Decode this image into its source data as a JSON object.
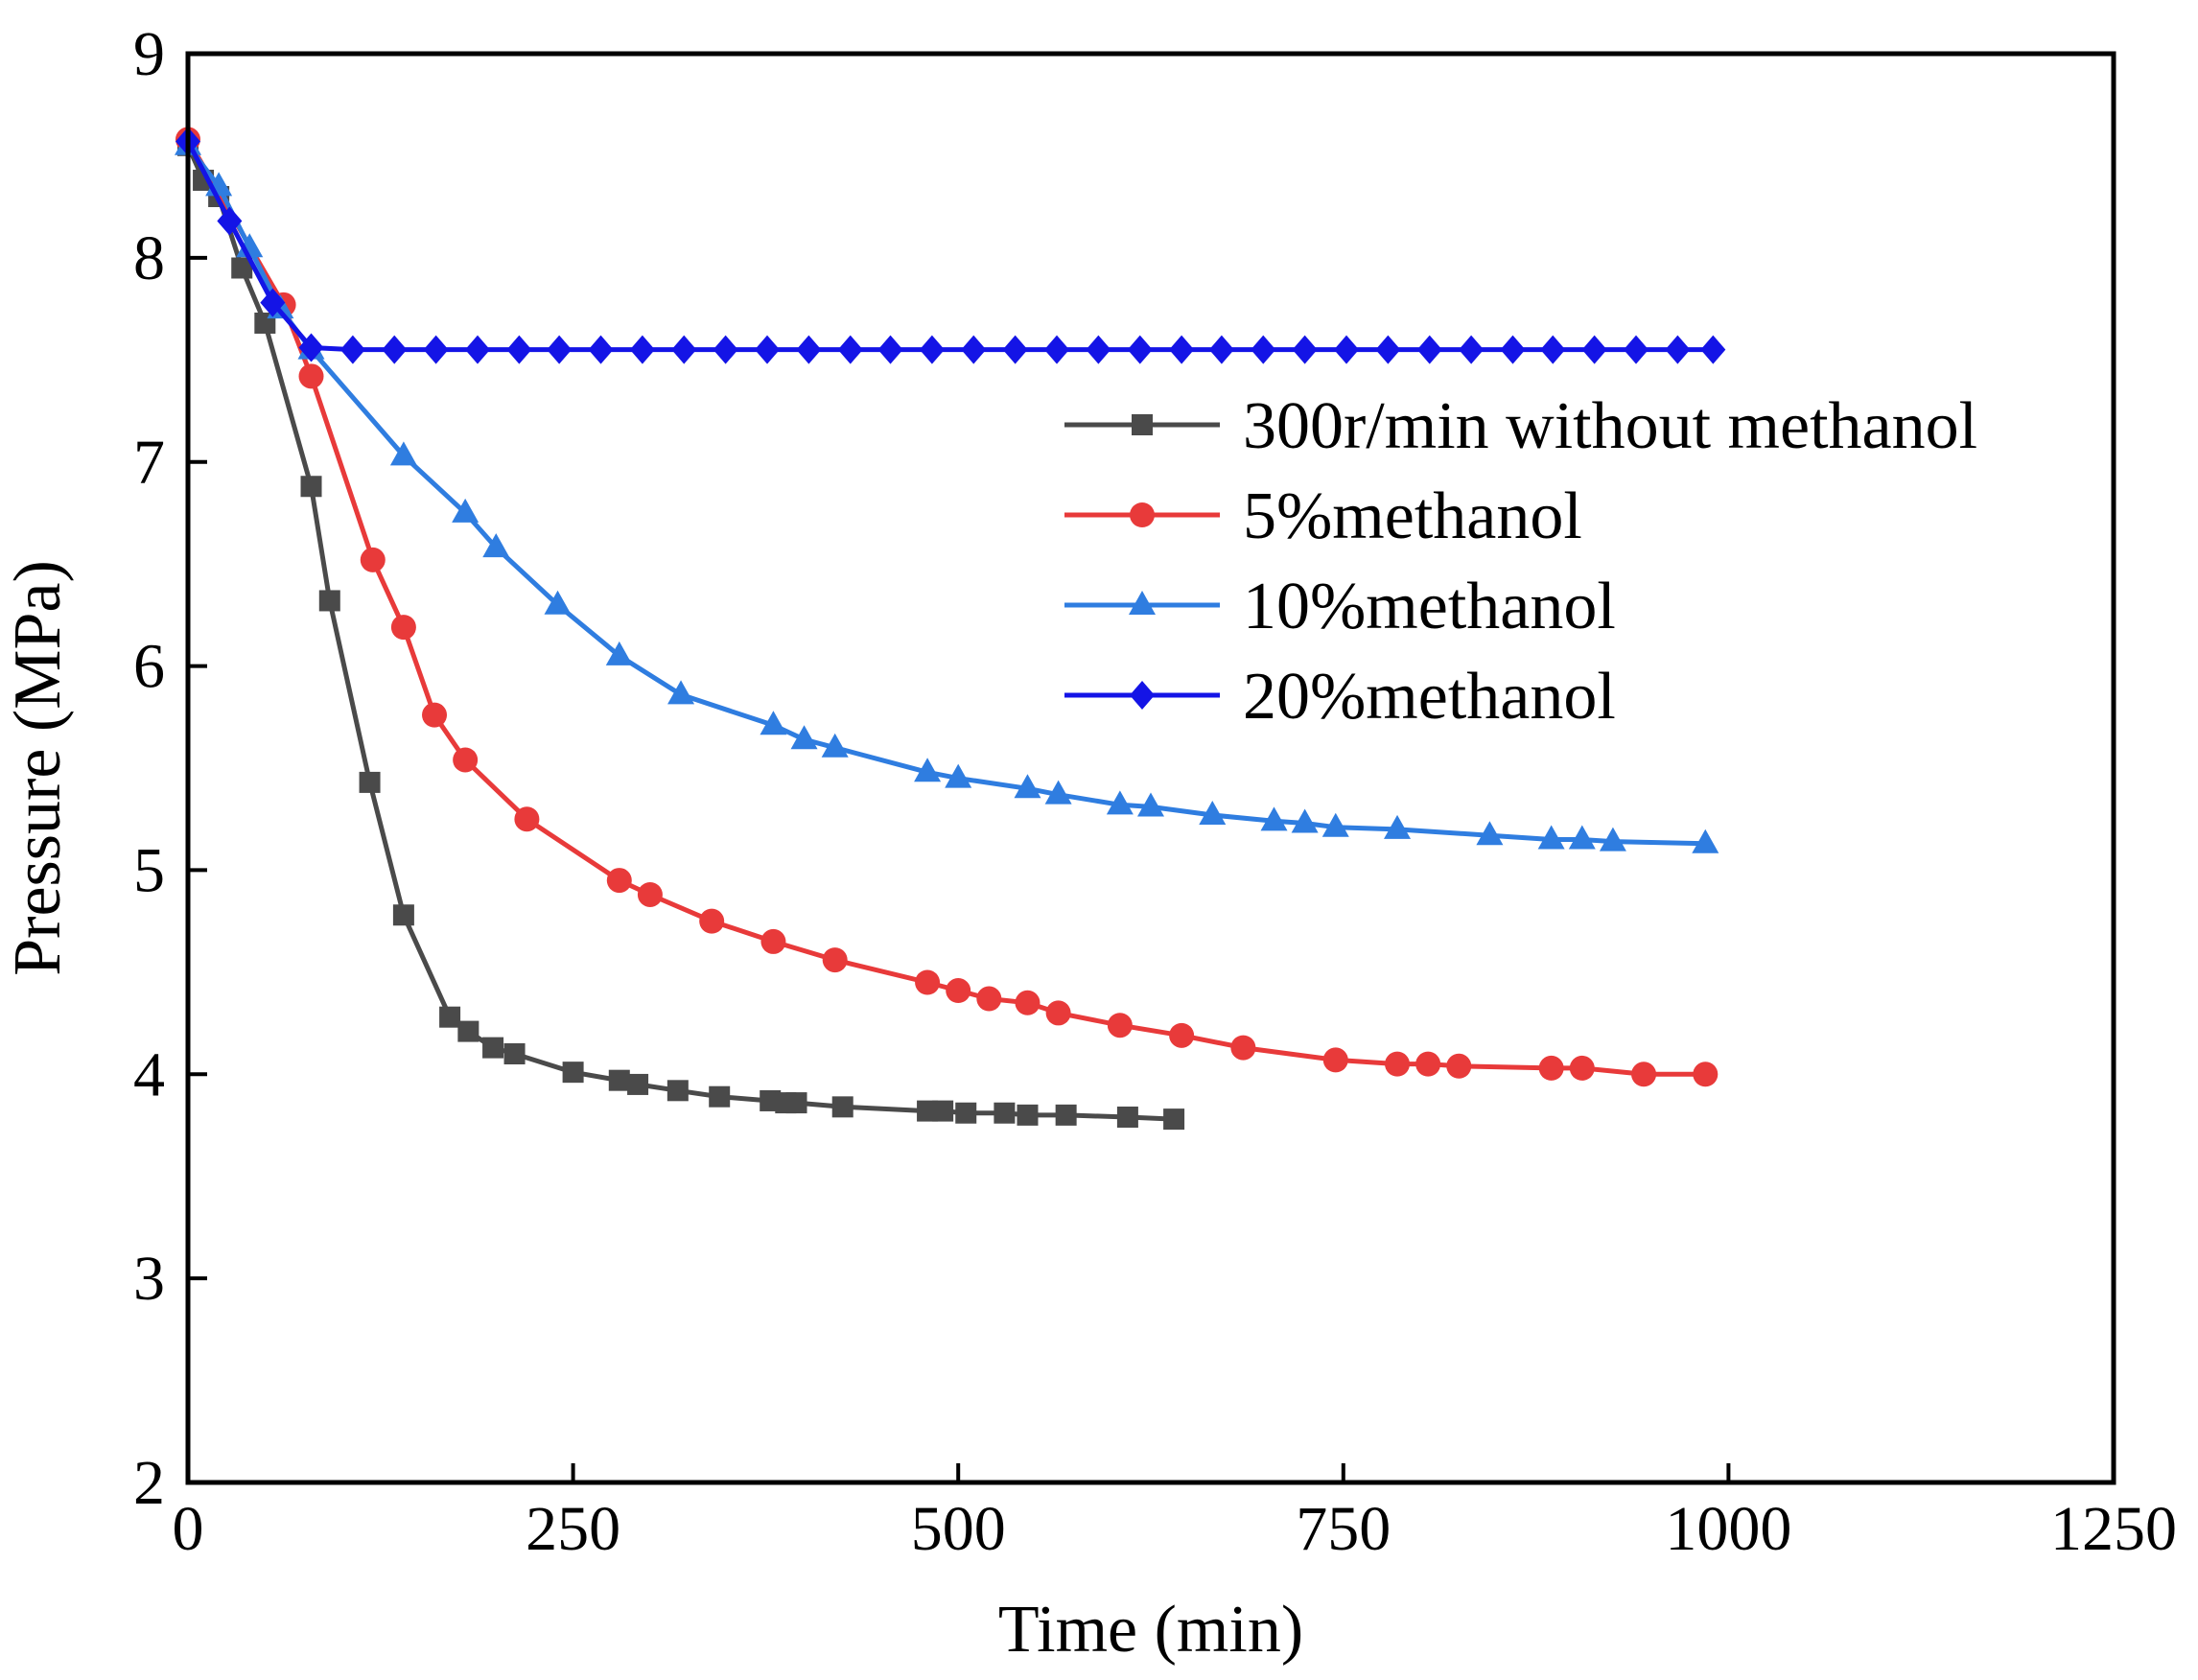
{
  "chart_data": {
    "type": "line",
    "title": "",
    "xlabel": "Time (min)",
    "ylabel": "Pressure (MPa)",
    "xlim": [
      0,
      1250
    ],
    "ylim": [
      2,
      9
    ],
    "xticks": [
      0,
      250,
      500,
      750,
      1000,
      1250
    ],
    "yticks": [
      2,
      3,
      4,
      5,
      6,
      7,
      8,
      9
    ],
    "grid": false,
    "legend_position": "right",
    "series": [
      {
        "name": "300r/min without methanol",
        "color": "#4a4a4a",
        "marker": "square",
        "x": [
          0,
          10,
          20,
          35,
          50,
          80,
          92,
          118,
          140,
          170,
          182,
          198,
          212,
          250,
          280,
          292,
          318,
          345,
          378,
          388,
          395,
          425,
          480,
          490,
          505,
          530,
          545,
          570,
          610,
          640
        ],
        "y": [
          8.55,
          8.38,
          8.3,
          7.95,
          7.68,
          6.88,
          6.32,
          5.43,
          4.78,
          4.28,
          4.21,
          4.13,
          4.1,
          4.01,
          3.97,
          3.95,
          3.92,
          3.89,
          3.87,
          3.86,
          3.86,
          3.84,
          3.82,
          3.82,
          3.81,
          3.81,
          3.8,
          3.8,
          3.79,
          3.78
        ]
      },
      {
        "name": "5%methanol",
        "color": "#e83a3a",
        "marker": "circle",
        "x": [
          0,
          62,
          80,
          120,
          140,
          160,
          180,
          220,
          280,
          300,
          340,
          380,
          420,
          480,
          500,
          520,
          545,
          565,
          605,
          645,
          685,
          745,
          785,
          805,
          825,
          885,
          905,
          945,
          985
        ],
        "y": [
          8.58,
          7.77,
          7.42,
          6.52,
          6.19,
          5.76,
          5.54,
          5.25,
          4.95,
          4.88,
          4.75,
          4.65,
          4.56,
          4.45,
          4.41,
          4.37,
          4.35,
          4.3,
          4.24,
          4.19,
          4.13,
          4.07,
          4.05,
          4.05,
          4.04,
          4.03,
          4.03,
          4.0,
          4.0
        ]
      },
      {
        "name": "10%methanol",
        "color": "#2f7de0",
        "marker": "triangle",
        "x": [
          0,
          20,
          40,
          60,
          80,
          140,
          180,
          200,
          240,
          280,
          320,
          380,
          400,
          420,
          480,
          500,
          545,
          565,
          605,
          625,
          665,
          705,
          725,
          745,
          785,
          845,
          885,
          905,
          925,
          985
        ],
        "y": [
          8.55,
          8.35,
          8.05,
          7.75,
          7.55,
          7.03,
          6.75,
          6.58,
          6.3,
          6.05,
          5.86,
          5.71,
          5.64,
          5.6,
          5.48,
          5.45,
          5.4,
          5.37,
          5.32,
          5.31,
          5.27,
          5.24,
          5.23,
          5.21,
          5.2,
          5.17,
          5.15,
          5.15,
          5.14,
          5.13
        ]
      },
      {
        "name": "20%methanol",
        "color": "#1414e6",
        "marker": "diamond",
        "x": [
          0,
          27,
          55,
          80,
          107,
          134,
          161,
          188,
          215,
          241,
          268,
          295,
          322,
          349,
          376,
          403,
          430,
          456,
          483,
          510,
          537,
          564,
          591,
          618,
          645,
          671,
          698,
          725,
          752,
          779,
          806,
          833,
          860,
          886,
          913,
          940,
          967,
          990
        ],
        "y": [
          8.57,
          8.18,
          7.78,
          7.56,
          7.55,
          7.55,
          7.55,
          7.55,
          7.55,
          7.55,
          7.55,
          7.55,
          7.55,
          7.55,
          7.55,
          7.55,
          7.55,
          7.55,
          7.55,
          7.55,
          7.55,
          7.55,
          7.55,
          7.55,
          7.55,
          7.55,
          7.55,
          7.55,
          7.55,
          7.55,
          7.55,
          7.55,
          7.55,
          7.55,
          7.55,
          7.55,
          7.55,
          7.55
        ]
      }
    ]
  }
}
